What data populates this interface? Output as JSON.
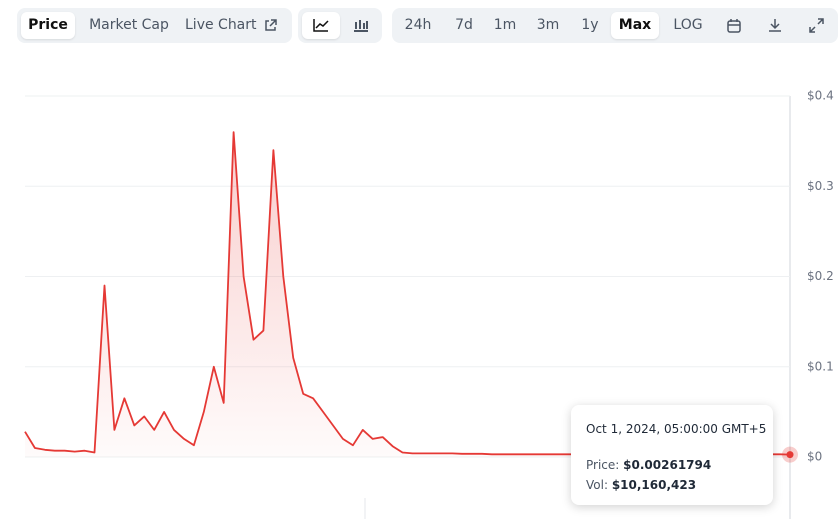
{
  "toolbar": {
    "tabs": [
      "Price",
      "Market Cap",
      "Live Chart"
    ],
    "ranges": [
      "24h",
      "7d",
      "1m",
      "3m",
      "1y",
      "Max",
      "LOG"
    ]
  },
  "chart_data": {
    "type": "line",
    "color": "#e53935",
    "values": [
      0.028,
      0.01,
      0.008,
      0.007,
      0.007,
      0.006,
      0.007,
      0.005,
      0.19,
      0.03,
      0.065,
      0.035,
      0.045,
      0.03,
      0.05,
      0.03,
      0.02,
      0.013,
      0.05,
      0.1,
      0.06,
      0.36,
      0.2,
      0.13,
      0.14,
      0.34,
      0.2,
      0.11,
      0.07,
      0.065,
      0.05,
      0.035,
      0.02,
      0.013,
      0.03,
      0.02,
      0.022,
      0.012,
      0.005,
      0.004,
      0.004,
      0.004,
      0.004,
      0.004,
      0.0035,
      0.0035,
      0.0035,
      0.003,
      0.003,
      0.003,
      0.003,
      0.003,
      0.003,
      0.003,
      0.003,
      0.003,
      0.003,
      0.003,
      0.003,
      0.003,
      0.003,
      0.003,
      0.003,
      0.003,
      0.003,
      0.003,
      0.003,
      0.003,
      0.003,
      0.003,
      0.003,
      0.003,
      0.003,
      0.003,
      0.003,
      0.003,
      0.003,
      0.00261794
    ],
    "ylim": [
      0,
      0.4
    ],
    "yticks": [
      {
        "value": 0,
        "label": "$0"
      },
      {
        "value": 0.1,
        "label": "$0.1"
      },
      {
        "value": 0.2,
        "label": "$0.2"
      },
      {
        "value": 0.3,
        "label": "$0.3"
      },
      {
        "value": 0.4,
        "label": "$0.4"
      }
    ],
    "grid": true,
    "tooltip": {
      "date": "Oct 1, 2024, 05:00:00 GMT+5",
      "price_label": "Price:",
      "price": "$0.00261794",
      "vol_label": "Vol:",
      "vol": "$10,160,423"
    }
  }
}
